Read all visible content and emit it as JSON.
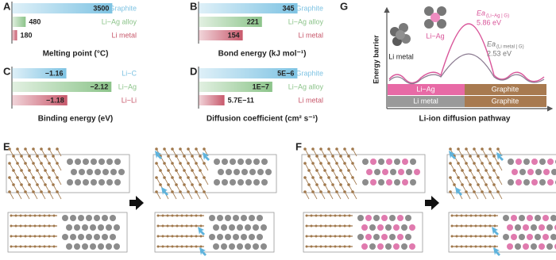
{
  "panel_labels": [
    "A",
    "B",
    "C",
    "D",
    "E",
    "F",
    "G"
  ],
  "chart_data": [
    {
      "type": "bar",
      "orientation": "horizontal",
      "xlabel": "Melting point (°C)",
      "categories": [
        "Graphite",
        "Li−Ag alloy",
        "Li metal"
      ],
      "values": [
        3500,
        480,
        180
      ],
      "colors": [
        "#7ec3e3",
        "#8cc48a",
        "#c8596c"
      ],
      "xlim": [
        0,
        3600
      ],
      "xscale": "linear"
    },
    {
      "type": "bar",
      "orientation": "horizontal",
      "xlabel": "Bond energy (kJ mol⁻¹)",
      "categories": [
        "Graphite",
        "Li−Ag alloy",
        "Li metal"
      ],
      "values": [
        345,
        221,
        154
      ],
      "colors": [
        "#7ec3e3",
        "#8cc48a",
        "#c8596c"
      ],
      "xlim": [
        0,
        360
      ],
      "xscale": "linear"
    },
    {
      "type": "bar",
      "orientation": "horizontal",
      "xlabel": "Binding energy (eV)",
      "categories": [
        "Li−C",
        "Li−Ag",
        "Li−Li"
      ],
      "values": [
        -1.16,
        -2.12,
        -1.18
      ],
      "value_labels": [
        "−1.16",
        "−2.12",
        "−1.18"
      ],
      "colors": [
        "#7ec3e3",
        "#8cc48a",
        "#c8596c"
      ],
      "xlim": [
        0,
        -2.2
      ],
      "xscale": "linear"
    },
    {
      "type": "bar",
      "orientation": "horizontal",
      "xlabel": "Diffusion coefficient (cm² s⁻¹)",
      "categories": [
        "Graphite",
        "Li−Ag alloy",
        "Li metal"
      ],
      "values": [
        5e-06,
        1e-07,
        5.7e-11
      ],
      "value_labels": [
        "5E−6",
        "1E−7",
        "5.7E−11"
      ],
      "colors": [
        "#7ec3e3",
        "#8cc48a",
        "#c8596c"
      ],
      "xlim": [
        1e-12,
        1e-05
      ],
      "xscale": "log"
    }
  ],
  "energy_diagram": {
    "ylabel": "Energy barrier",
    "xlabel": "Li-ion diffusion pathway",
    "cluster_labels": [
      "Li metal",
      "Li−Ag"
    ],
    "barriers": [
      {
        "label": "Ea",
        "subscript": "(Li−Ag | G)",
        "value_label": "5.86 eV"
      },
      {
        "label": "Ea",
        "subscript": "(Li metal | G)",
        "value_label": "2.53 eV"
      }
    ],
    "layers": [
      [
        "Li−Ag",
        "Graphite"
      ],
      [
        "Li metal",
        "Graphite"
      ]
    ]
  }
}
